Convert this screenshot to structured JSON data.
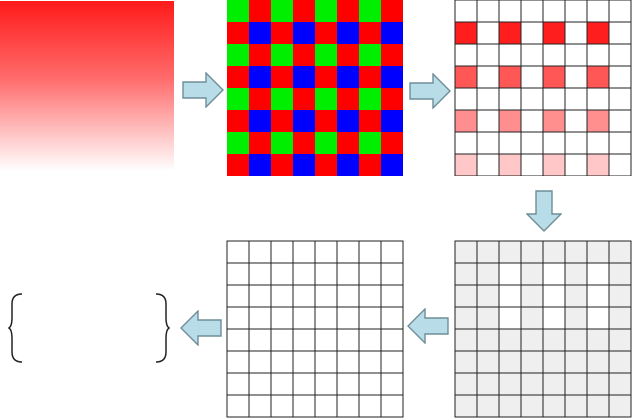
{
  "diagram": {
    "source_gradient_color": "#ff0000",
    "bayer_colors": {
      "red": "#ff0000",
      "green": "#00ee00",
      "blue": "#0000ff"
    },
    "grid_rows": 8,
    "grid_cols": 8,
    "labels": {
      "arrow1_label": "",
      "arrow2_caption": "",
      "arrow3_label": "",
      "arrow4_label": "",
      "result_caption": ""
    }
  }
}
